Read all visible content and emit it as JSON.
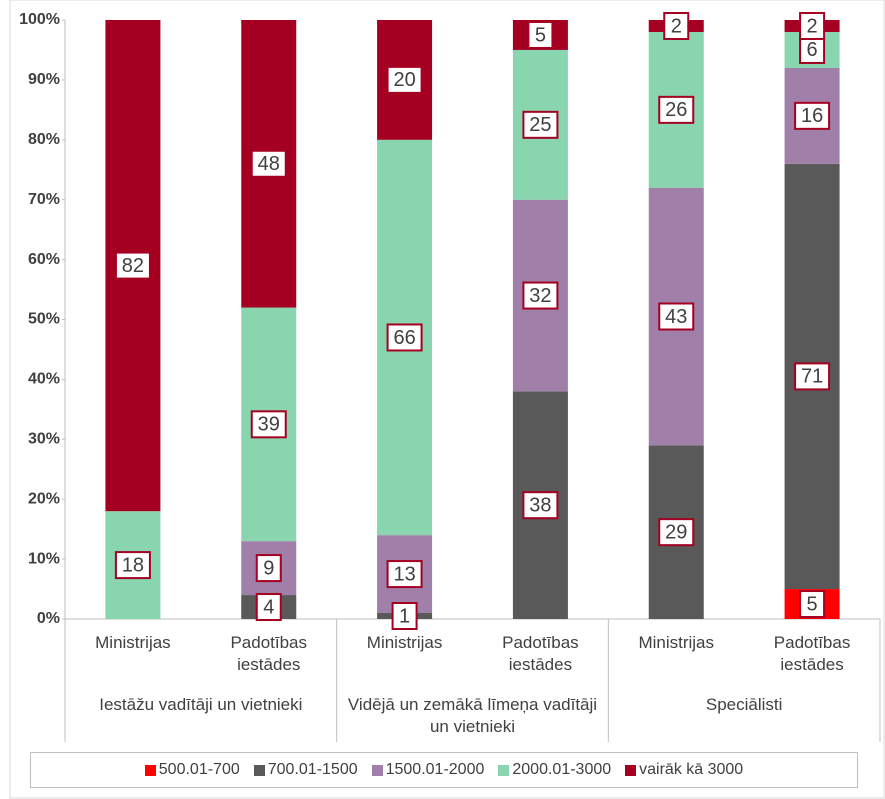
{
  "chart_data": {
    "type": "stacked_bar",
    "categories": [
      "Ministrijas",
      "Padotības iestādes",
      "Ministrijas",
      "Padotības iestādes",
      "Ministrijas",
      "Padotības iestādes"
    ],
    "groups": [
      "Iestāžu vadītāji un vietnieki",
      "Vidējā  un zemākā līmeņa vadītāji un vietnieki",
      "Speciālisti"
    ],
    "series": [
      {
        "name": "500.01-700",
        "color": "#ff0000",
        "values": [
          null,
          null,
          null,
          null,
          null,
          5
        ]
      },
      {
        "name": "700.01-1500",
        "color": "#595959",
        "values": [
          null,
          4,
          1,
          38,
          29,
          71
        ]
      },
      {
        "name": "1500.01-2000",
        "color": "#a07fa8",
        "values": [
          null,
          9,
          13,
          32,
          43,
          16
        ]
      },
      {
        "name": "2000.01-3000",
        "color": "#88d5b0",
        "values": [
          18,
          39,
          66,
          25,
          26,
          6
        ]
      },
      {
        "name": "vairāk kā 3000",
        "color": "#a50021",
        "values": [
          82,
          48,
          20,
          5,
          2,
          2
        ]
      }
    ],
    "ylim": [
      0,
      100
    ],
    "yticks": [
      {
        "value": 0,
        "label": "0%"
      },
      {
        "value": 10,
        "label": "10%"
      },
      {
        "value": 20,
        "label": "20%"
      },
      {
        "value": 30,
        "label": "30%"
      },
      {
        "value": 40,
        "label": "40%"
      },
      {
        "value": 50,
        "label": "50%"
      },
      {
        "value": 60,
        "label": "60%"
      },
      {
        "value": 70,
        "label": "70%"
      },
      {
        "value": 80,
        "label": "80%"
      },
      {
        "value": 90,
        "label": "90%"
      },
      {
        "value": 100,
        "label": "100%"
      }
    ],
    "legend": "bottom"
  }
}
